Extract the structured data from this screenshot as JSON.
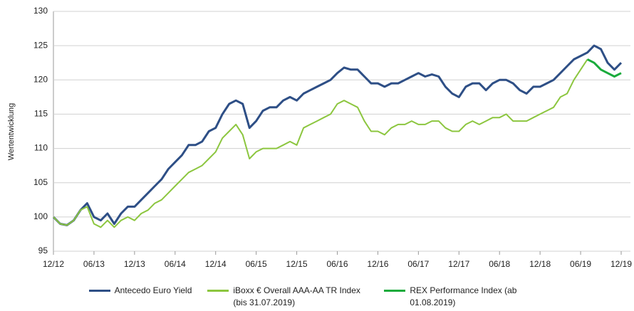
{
  "chart_data": {
    "type": "line",
    "y_label": "Wertentwicklung",
    "x": [
      "12/12",
      "01/13",
      "02/13",
      "03/13",
      "04/13",
      "05/13",
      "06/13",
      "07/13",
      "08/13",
      "09/13",
      "10/13",
      "11/13",
      "12/13",
      "01/14",
      "02/14",
      "03/14",
      "04/14",
      "05/14",
      "06/14",
      "07/14",
      "08/14",
      "09/14",
      "10/14",
      "11/14",
      "12/14",
      "01/15",
      "02/15",
      "03/15",
      "04/15",
      "05/15",
      "06/15",
      "07/15",
      "08/15",
      "09/15",
      "10/15",
      "11/15",
      "12/15",
      "01/16",
      "02/16",
      "03/16",
      "04/16",
      "05/16",
      "06/16",
      "07/16",
      "08/16",
      "09/16",
      "10/16",
      "11/16",
      "12/16",
      "01/17",
      "02/17",
      "03/17",
      "04/17",
      "05/17",
      "06/17",
      "07/17",
      "08/17",
      "09/17",
      "10/17",
      "11/17",
      "12/17",
      "01/18",
      "02/18",
      "03/18",
      "04/18",
      "05/18",
      "06/18",
      "07/18",
      "08/18",
      "09/18",
      "10/18",
      "11/18",
      "12/18",
      "01/19",
      "02/19",
      "03/19",
      "04/19",
      "05/19",
      "06/19",
      "07/19",
      "08/19",
      "09/19",
      "10/19",
      "11/19",
      "12/19"
    ],
    "xticks": [
      "12/12",
      "06/13",
      "12/13",
      "06/14",
      "12/14",
      "06/15",
      "12/15",
      "06/16",
      "12/16",
      "06/17",
      "12/17",
      "06/18",
      "12/18",
      "06/19",
      "12/19"
    ],
    "series": [
      {
        "name": "Antecedo Euro Yield",
        "color": "#2e4f86",
        "width": 3,
        "values": [
          100,
          99,
          98.8,
          99.5,
          101,
          102,
          100,
          99.5,
          100.5,
          99,
          100.5,
          101.5,
          101.5,
          102.5,
          103.5,
          104.5,
          105.5,
          107,
          108,
          109,
          110.5,
          110.5,
          111,
          112.5,
          113,
          115,
          116.5,
          117,
          116.5,
          113,
          114,
          115.5,
          116,
          116,
          117,
          117.5,
          117,
          118,
          118.5,
          119,
          119.5,
          120,
          121,
          121.8,
          121.5,
          121.5,
          120.5,
          119.5,
          119.5,
          119,
          119.5,
          119.5,
          120,
          120.5,
          121,
          120.5,
          120.8,
          120.5,
          119,
          118,
          117.5,
          119,
          119.5,
          119.5,
          118.5,
          119.5,
          120,
          120,
          119.5,
          118.5,
          118,
          119,
          119,
          119.5,
          120,
          121,
          122,
          123,
          123.5,
          124,
          125,
          124.5,
          122.5,
          121.5,
          122.5
        ]
      },
      {
        "name": "iBoxx € Overall AAA-AA TR Index (bis 31.07.2019)",
        "color": "#8cc63f",
        "width": 2,
        "values": [
          100,
          99,
          98.8,
          99.5,
          101,
          101.5,
          99,
          98.5,
          99.5,
          98.5,
          99.5,
          100,
          99.5,
          100.5,
          101,
          102,
          102.5,
          103.5,
          104.5,
          105.5,
          106.5,
          107,
          107.5,
          108.5,
          109.5,
          111.5,
          112.5,
          113.5,
          112,
          108.5,
          109.5,
          110,
          110,
          110,
          110.5,
          111,
          110.5,
          113,
          113.5,
          114,
          114.5,
          115,
          116.5,
          117,
          116.5,
          116,
          114,
          112.5,
          112.5,
          112,
          113,
          113.5,
          113.5,
          114,
          113.5,
          113.5,
          114,
          114,
          113,
          112.5,
          112.5,
          113.5,
          114,
          113.5,
          114,
          114.5,
          114.5,
          115,
          114,
          114,
          114,
          114.5,
          115,
          115.5,
          116,
          117.5,
          118,
          120,
          121.5,
          123,
          null,
          null,
          null,
          null,
          null
        ]
      },
      {
        "name": "REX Performance Index (ab 01.08.2019)",
        "color": "#1aab3c",
        "width": 3,
        "values": [
          null,
          null,
          null,
          null,
          null,
          null,
          null,
          null,
          null,
          null,
          null,
          null,
          null,
          null,
          null,
          null,
          null,
          null,
          null,
          null,
          null,
          null,
          null,
          null,
          null,
          null,
          null,
          null,
          null,
          null,
          null,
          null,
          null,
          null,
          null,
          null,
          null,
          null,
          null,
          null,
          null,
          null,
          null,
          null,
          null,
          null,
          null,
          null,
          null,
          null,
          null,
          null,
          null,
          null,
          null,
          null,
          null,
          null,
          null,
          null,
          null,
          null,
          null,
          null,
          null,
          null,
          null,
          null,
          null,
          null,
          null,
          null,
          null,
          null,
          null,
          null,
          null,
          null,
          null,
          123,
          122.5,
          121.5,
          121,
          120.5,
          121
        ]
      }
    ],
    "ylim": [
      95,
      130
    ],
    "yticks": [
      95,
      100,
      105,
      110,
      115,
      120,
      125,
      130
    ],
    "grid": true
  }
}
